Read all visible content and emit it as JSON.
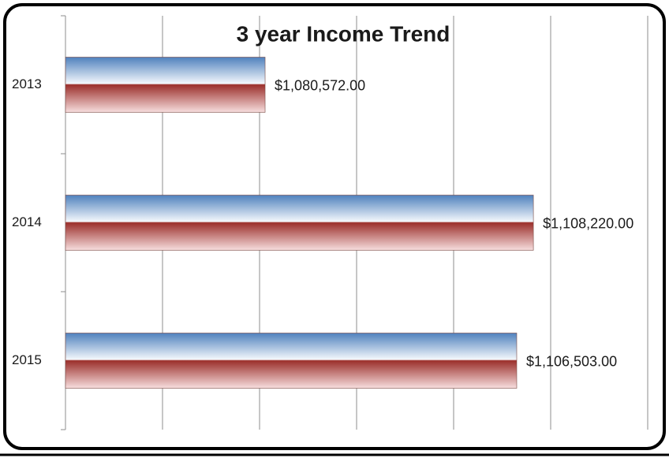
{
  "chart_data": {
    "type": "bar",
    "orientation": "horizontal",
    "title": "3 year Income Trend",
    "categories": [
      "2013",
      "2014",
      "2015"
    ],
    "values": [
      1080572,
      1108220,
      1106503
    ],
    "value_labels": [
      "$1,080,572.00",
      "$1,108,220.00",
      "$1,106,503.00"
    ],
    "color": "#4f81bd",
    "color2": "#9b2f2b",
    "xlim": [
      1060000,
      1120000
    ],
    "xticks": [
      1060000,
      1070000,
      1080000,
      1090000,
      1100000,
      1110000,
      1120000
    ],
    "grid": true
  }
}
